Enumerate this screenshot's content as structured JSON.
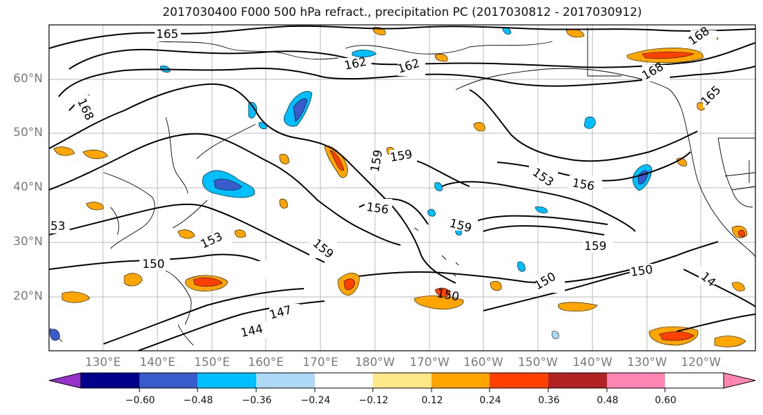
{
  "title": "2017030400 F000 500 hPa refract., precipitation PC (2017030812 - 2017030912)",
  "map": {
    "lat_labels": [
      "60°N",
      "50°N",
      "40°N",
      "30°N",
      "20°N"
    ],
    "lon_labels": [
      "130°E",
      "140°E",
      "150°E",
      "160°E",
      "170°E",
      "180°W",
      "170°W",
      "160°W",
      "150°W",
      "140°W",
      "130°W",
      "120°W"
    ],
    "contour_labels": [
      "165",
      "162",
      "162",
      "168",
      "168",
      "168",
      "165",
      "159",
      "159",
      "156",
      "156",
      "153",
      "153",
      "159",
      "159",
      "150",
      "150",
      "150",
      "147",
      "144",
      "150",
      "159",
      "53",
      "14"
    ]
  },
  "colorbar": {
    "tick_labels": [
      "−0.60",
      "−0.48",
      "−0.36",
      "−0.24",
      "−0.12",
      "0.12",
      "0.24",
      "0.36",
      "0.48",
      "0.60"
    ],
    "colors": [
      "#9932cc",
      "#00008b",
      "#3a5bcc",
      "#00bfff",
      "#add8f6",
      "#ffffff",
      "#ffe88a",
      "#ffa500",
      "#ff4000",
      "#b22222",
      "#ff85b2"
    ]
  }
}
